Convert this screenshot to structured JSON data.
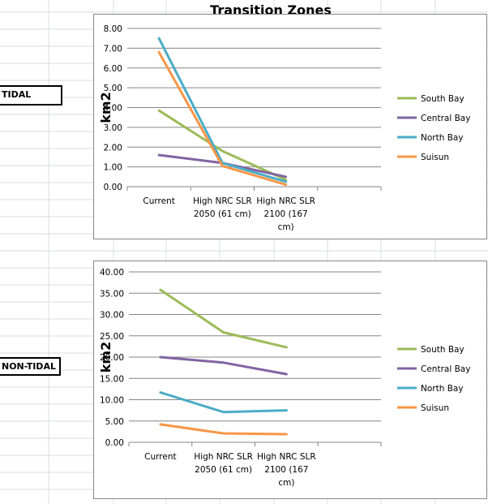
{
  "labels": {
    "tidal": "TIDAL",
    "non_tidal": "NON-TIDAL"
  },
  "chart_data": [
    {
      "type": "line",
      "title": "Transition Zones",
      "categories": [
        "Current",
        "High NRC SLR 2050 (61 cm)",
        "High NRC SLR 2100 (167 cm)"
      ],
      "category_lines": [
        [
          "Current"
        ],
        [
          "High NRC SLR",
          "2050 (61 cm)"
        ],
        [
          "High NRC SLR",
          "2100 (167",
          "cm)"
        ]
      ],
      "xlabel": "",
      "ylabel": "km2",
      "ylim": [
        0,
        8
      ],
      "ytick_step": 1,
      "ytick_decimals": 2,
      "grid": true,
      "legend_position": "right",
      "series": [
        {
          "name": "South Bay",
          "color": "#9bbb59",
          "values": [
            3.85,
            1.8,
            0.35
          ]
        },
        {
          "name": "Central Bay",
          "color": "#8064a2",
          "values": [
            1.6,
            1.2,
            0.5
          ]
        },
        {
          "name": "North Bay",
          "color": "#4bacc6",
          "values": [
            7.5,
            1.2,
            0.25
          ]
        },
        {
          "name": "Suisun",
          "color": "#f79646",
          "values": [
            6.8,
            1.05,
            0.1
          ]
        }
      ]
    },
    {
      "type": "line",
      "title": "",
      "categories": [
        "Current",
        "High NRC SLR 2050 (61 cm)",
        "High NRC SLR 2100 (167 cm)"
      ],
      "category_lines": [
        [
          "Current"
        ],
        [
          "High NRC SLR",
          "2050 (61 cm)"
        ],
        [
          "High NRC SLR",
          "2100 (167",
          "cm)"
        ]
      ],
      "xlabel": "",
      "ylabel": "km2",
      "ylim": [
        0,
        40
      ],
      "ytick_step": 5,
      "ytick_decimals": 2,
      "grid": true,
      "legend_position": "right",
      "series": [
        {
          "name": "South Bay",
          "color": "#9bbb59",
          "values": [
            35.8,
            25.8,
            22.3
          ]
        },
        {
          "name": "Central Bay",
          "color": "#8064a2",
          "values": [
            20.0,
            18.7,
            16.0
          ]
        },
        {
          "name": "North Bay",
          "color": "#4bacc6",
          "values": [
            11.7,
            7.1,
            7.5
          ]
        },
        {
          "name": "Suisun",
          "color": "#f79646",
          "values": [
            4.2,
            2.1,
            1.9
          ]
        }
      ]
    }
  ]
}
